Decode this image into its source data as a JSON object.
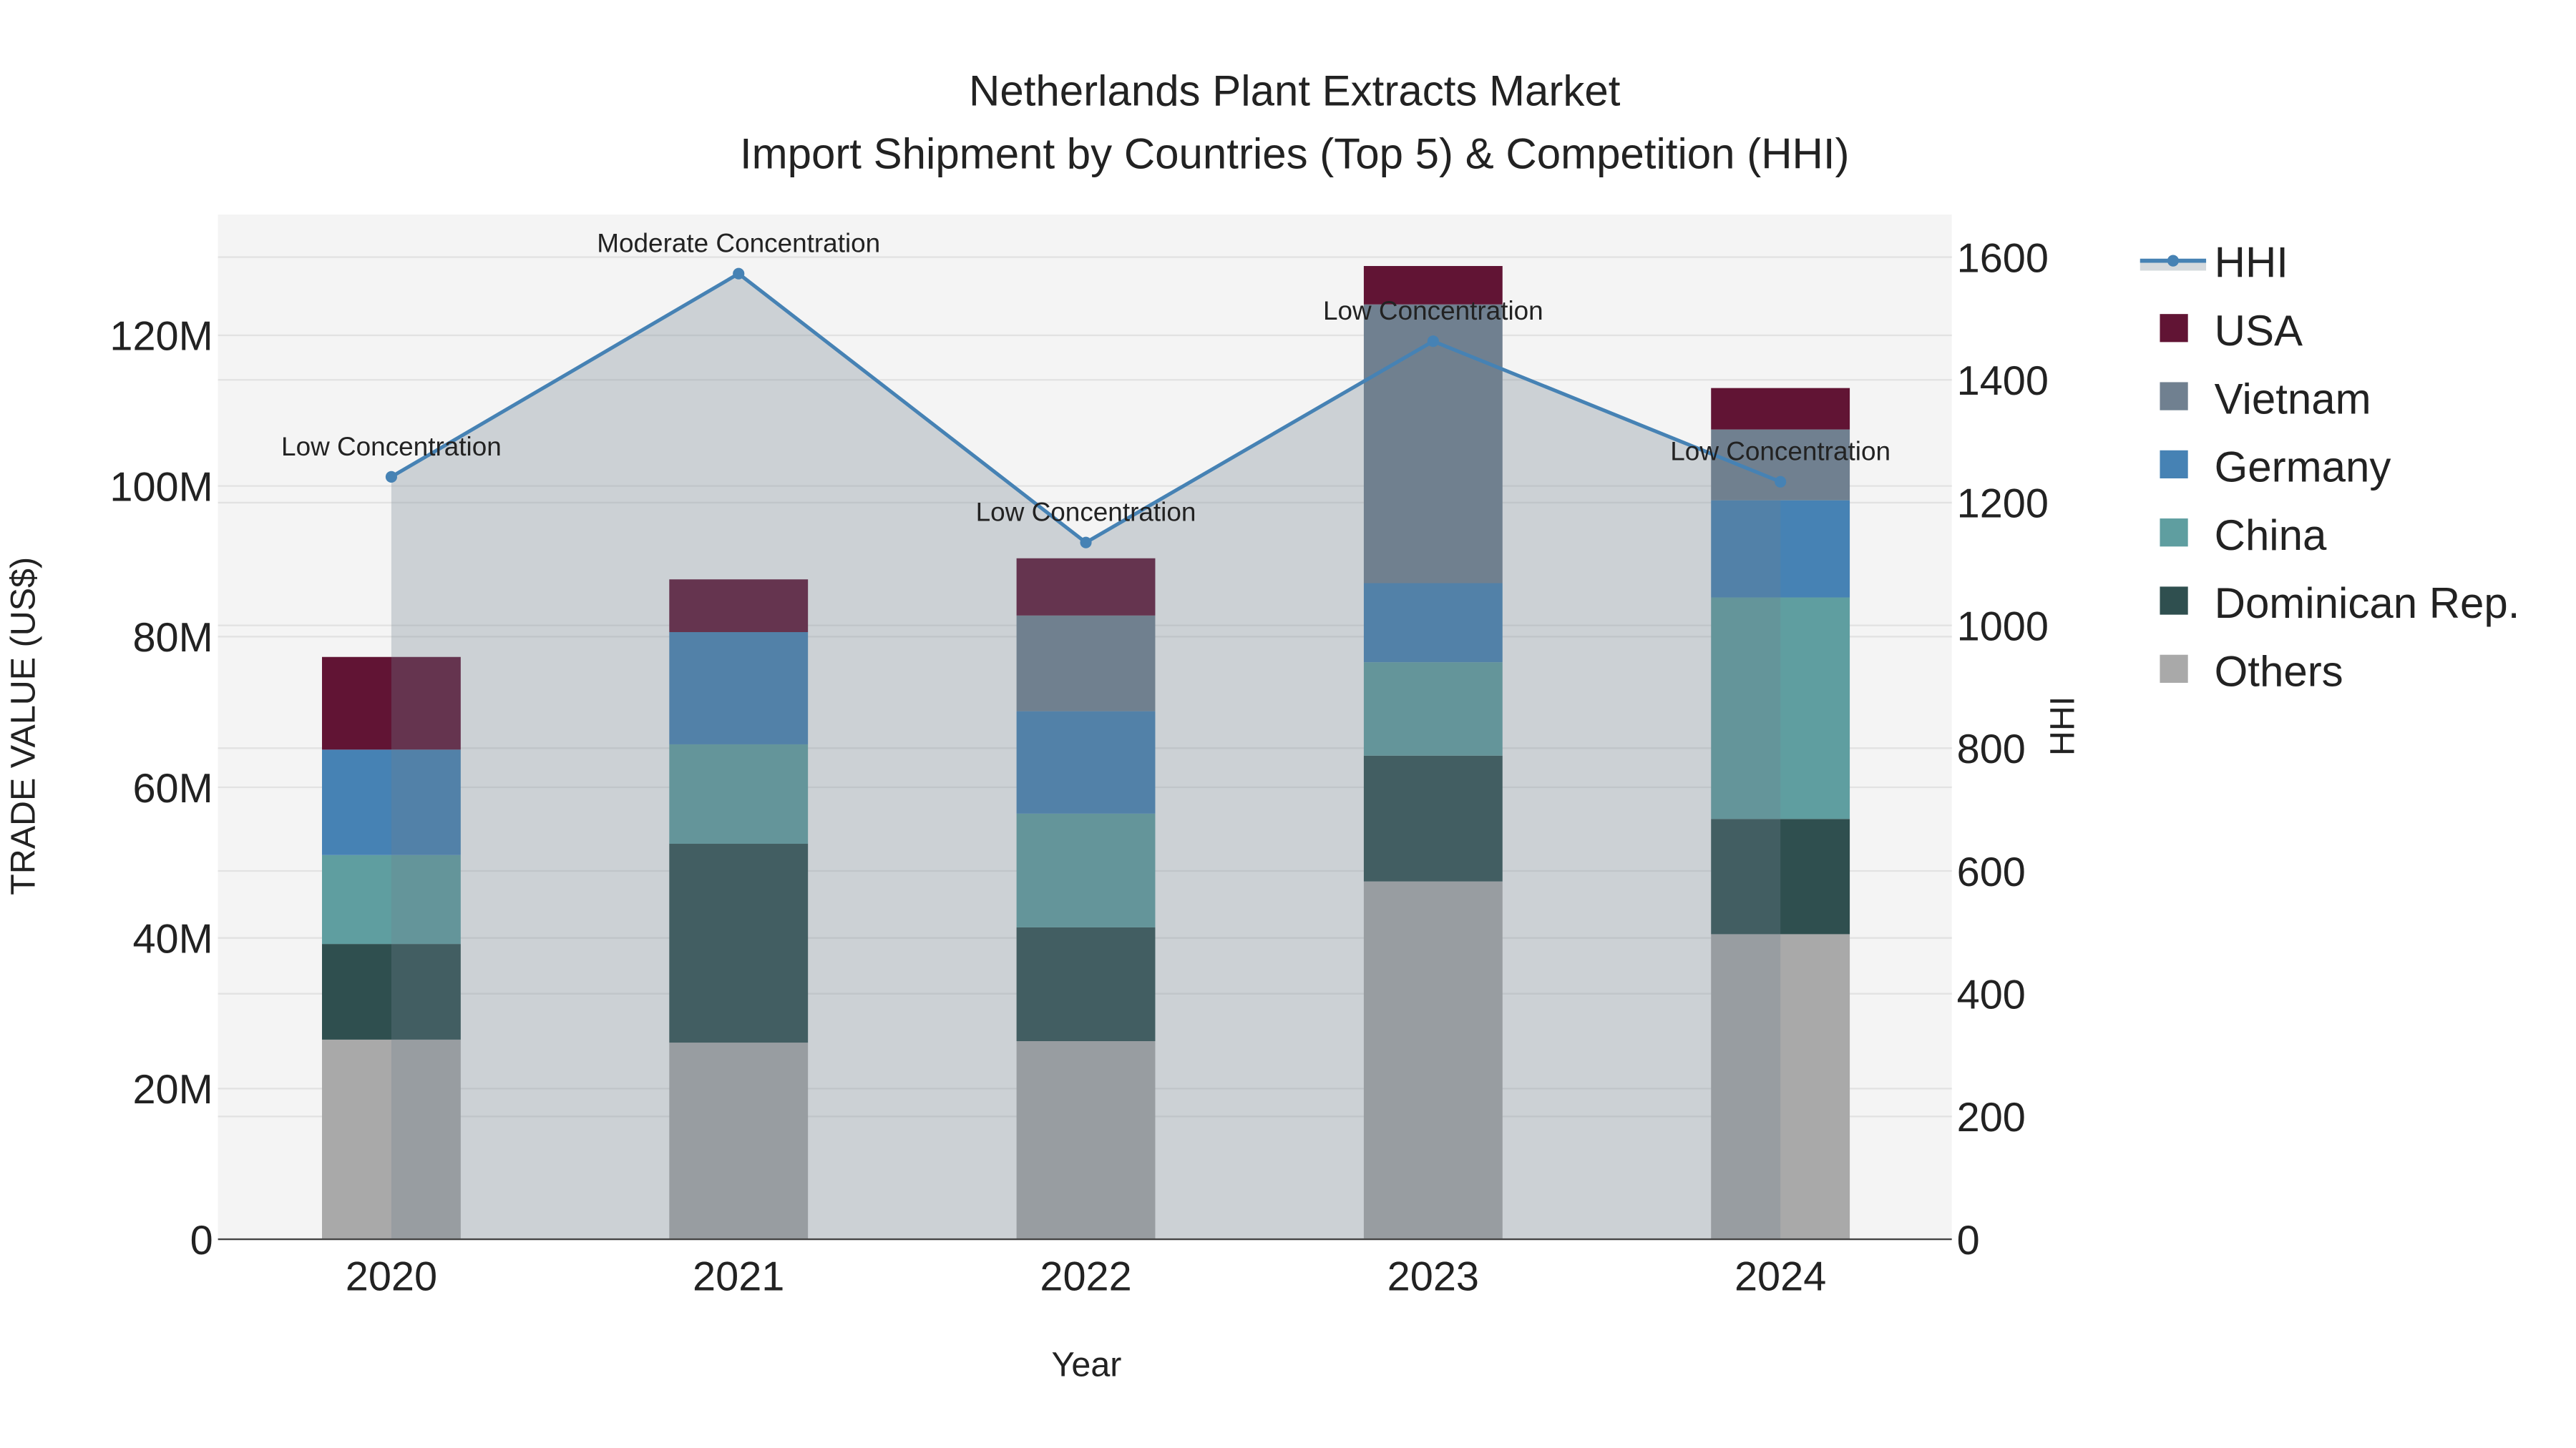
{
  "chart_data": {
    "type": "bar",
    "title": "Netherlands Plant Extracts Market",
    "subtitle": "Import Shipment by Countries (Top 5) & Competition (HHI)",
    "xlabel": "Year",
    "ylabel": "TRADE VALUE (US$)",
    "y2label": "HHI",
    "categories": [
      "2020",
      "2021",
      "2022",
      "2023",
      "2024"
    ],
    "ylim": [
      0,
      135
    ],
    "y_unit": "M US$",
    "y_ticks": [
      0,
      20,
      40,
      60,
      80,
      100,
      120
    ],
    "y_tick_labels": [
      "0",
      "20M",
      "40M",
      "60M",
      "80M",
      "100M",
      "120M"
    ],
    "y2lim": [
      0,
      1670
    ],
    "y2_ticks": [
      0,
      200,
      400,
      600,
      800,
      1000,
      1200,
      1400,
      1600
    ],
    "y2_tick_labels": [
      "0",
      "200",
      "400",
      "600",
      "800",
      "1000",
      "1200",
      "1400",
      "1600"
    ],
    "grid": true,
    "legend_placement": "right",
    "series": [
      {
        "name": "Others",
        "color": "#a9a9a9",
        "values": [
          26.5,
          26.1,
          26.3,
          47.5,
          40.5
        ]
      },
      {
        "name": "Dominican Rep.",
        "color": "#2f4f4f",
        "values": [
          12.7,
          26.4,
          15.1,
          16.7,
          15.3
        ]
      },
      {
        "name": "China",
        "color": "#5f9ea0",
        "values": [
          11.8,
          13.2,
          15.1,
          12.4,
          29.4
        ]
      },
      {
        "name": "Germany",
        "color": "#4682b4",
        "values": [
          14.0,
          14.9,
          13.6,
          10.5,
          12.9
        ]
      },
      {
        "name": "Vietnam",
        "color": "#708090",
        "values": [
          0,
          0,
          12.7,
          37.0,
          9.4
        ]
      },
      {
        "name": "USA",
        "color": "#611434",
        "values": [
          12.3,
          7.0,
          7.6,
          5.1,
          5.5
        ]
      }
    ],
    "hhi": {
      "name": "HHI",
      "color": "#4682b4",
      "values": [
        1242,
        1573,
        1135,
        1463,
        1234
      ],
      "annotations": [
        "Low Concentration",
        "Moderate Concentration",
        "Low Concentration",
        "Low Concentration",
        "Low Concentration"
      ]
    },
    "legend": [
      "HHI",
      "USA",
      "Vietnam",
      "Germany",
      "China",
      "Dominican Rep.",
      "Others"
    ]
  }
}
